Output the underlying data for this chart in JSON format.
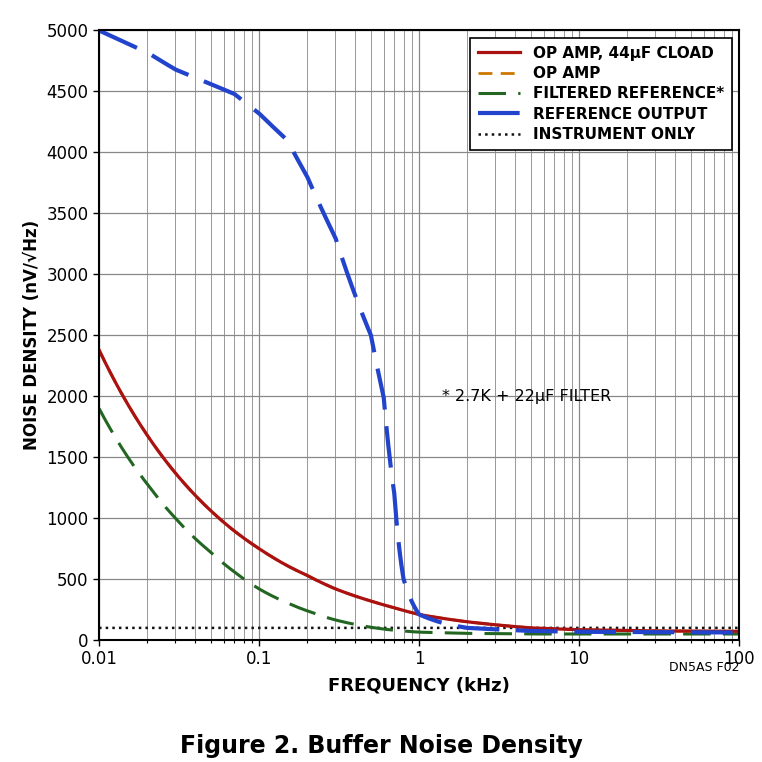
{
  "title": "Figure 2. Buffer Noise Density",
  "xlabel": "FREQUENCY (kHz)",
  "ylabel": "NOISE DENSITY (nV/√Hz)",
  "annotation": "* 2.7K + 22μF FILTER",
  "footnote": "DN5AS F02",
  "xlim": [
    0.01,
    100
  ],
  "ylim": [
    0,
    5000
  ],
  "yticks": [
    0,
    500,
    1000,
    1500,
    2000,
    2500,
    3000,
    3500,
    4000,
    4500,
    5000
  ],
  "legend_order": [
    "OP AMP, 44μF CLOAD",
    "OP AMP",
    "FILTERED REFERENCE*",
    "REFERENCE OUTPUT",
    "INSTRUMENT ONLY"
  ],
  "colors": {
    "op_amp_44uf": "#aa1111",
    "op_amp": "#cc7700",
    "filtered_ref": "#226622",
    "ref_output": "#2244cc",
    "instrument": "#111111"
  },
  "background_color": "#ffffff",
  "grid_color": "#888888",
  "curve_data": {
    "op_amp_44uf": {
      "freq_pts": [
        0.01,
        0.02,
        0.03,
        0.05,
        0.07,
        0.1,
        0.15,
        0.2,
        0.3,
        0.5,
        0.7,
        1.0,
        2.0,
        5.0,
        10.0,
        30.0,
        100.0
      ],
      "noise_pts": [
        2380,
        1680,
        1370,
        1060,
        895,
        750,
        610,
        530,
        420,
        320,
        265,
        210,
        150,
        100,
        85,
        75,
        72
      ]
    },
    "op_amp": {
      "freq_pts": [
        0.01,
        0.02,
        0.03,
        0.05,
        0.07,
        0.1,
        0.15,
        0.2,
        0.3,
        0.5,
        0.7,
        1.0,
        2.0,
        5.0,
        10.0,
        30.0,
        100.0
      ],
      "noise_pts": [
        2380,
        1680,
        1370,
        1060,
        895,
        750,
        610,
        530,
        420,
        320,
        265,
        210,
        150,
        100,
        85,
        75,
        72
      ]
    },
    "filtered_ref": {
      "freq_pts": [
        0.01,
        0.02,
        0.03,
        0.05,
        0.07,
        0.1,
        0.15,
        0.2,
        0.3,
        0.5,
        0.7,
        1.0,
        2.0,
        5.0,
        10.0,
        30.0,
        100.0
      ],
      "noise_pts": [
        1900,
        1280,
        1000,
        720,
        560,
        420,
        305,
        240,
        165,
        105,
        80,
        65,
        55,
        50,
        50,
        50,
        50
      ]
    },
    "ref_output": {
      "freq_pts": [
        0.01,
        0.02,
        0.03,
        0.05,
        0.07,
        0.1,
        0.15,
        0.2,
        0.3,
        0.5,
        0.6,
        0.7,
        0.8,
        1.0,
        1.5,
        2.0,
        5.0,
        10.0,
        30.0,
        100.0
      ],
      "noise_pts": [
        5000,
        4820,
        4680,
        4560,
        4480,
        4320,
        4100,
        3800,
        3300,
        2500,
        2000,
        1200,
        500,
        210,
        130,
        100,
        75,
        68,
        65,
        62
      ]
    },
    "instrument": {
      "freq_pts": [
        0.01,
        100.0
      ],
      "noise_pts": [
        100,
        100
      ]
    }
  }
}
